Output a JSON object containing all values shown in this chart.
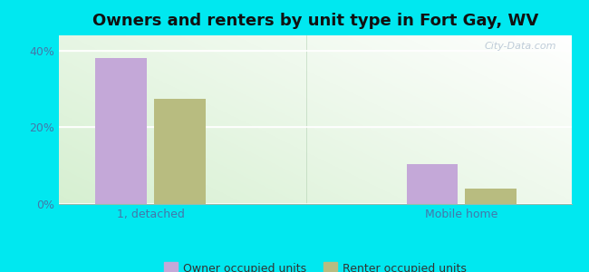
{
  "title": "Owners and renters by unit type in Fort Gay, WV",
  "categories": [
    "1, detached",
    "Mobile home"
  ],
  "owner_values": [
    38.0,
    10.5
  ],
  "renter_values": [
    27.5,
    4.0
  ],
  "owner_color": "#c4a8d8",
  "renter_color": "#b8bc80",
  "owner_label": "Owner occupied units",
  "renter_label": "Renter occupied units",
  "ylim": [
    0,
    44
  ],
  "yticks": [
    0,
    20,
    40
  ],
  "ytick_labels": [
    "0%",
    "20%",
    "40%"
  ],
  "background_outer": "#00e8f0",
  "bar_width": 0.28,
  "group_positions": [
    0.9,
    2.6
  ],
  "watermark": "City-Data.com",
  "title_fontsize": 13,
  "axis_fontsize": 9,
  "legend_fontsize": 9,
  "bg_left_color": "#d8edcc",
  "bg_right_color": "#eafaf0",
  "bg_top_color": "#f8fffc"
}
